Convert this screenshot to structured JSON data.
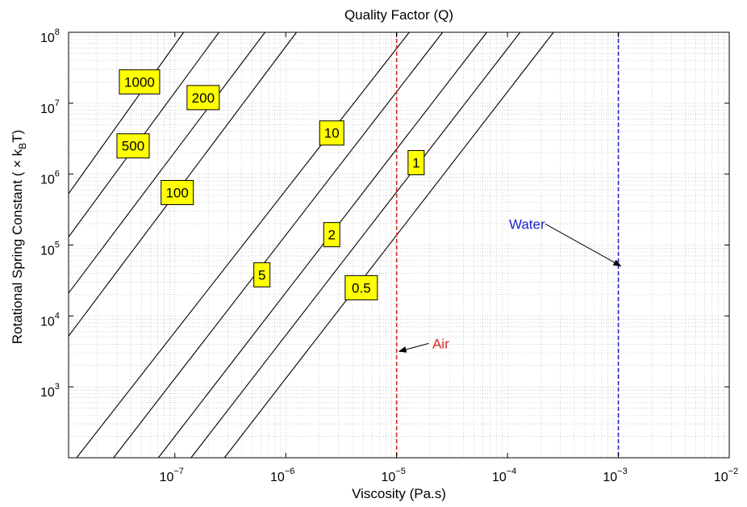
{
  "chart_data": {
    "type": "line",
    "title": "Quality Factor (Q)",
    "xlabel": "Viscosity (Pa.s)",
    "ylabel": {
      "main": "Rotational Spring Constant ( × k",
      "sub": "B",
      "end": "T)"
    },
    "x_scale": "log",
    "y_scale": "log",
    "xlim": [
      1.1e-08,
      0.01
    ],
    "ylim": [
      100,
      100000000
    ],
    "grid": true,
    "x_ticks": [
      {
        "value": 1e-07,
        "base": "10",
        "exp": "−7"
      },
      {
        "value": 1e-06,
        "base": "10",
        "exp": "−6"
      },
      {
        "value": 1e-05,
        "base": "10",
        "exp": "−5"
      },
      {
        "value": 0.0001,
        "base": "10",
        "exp": "−4"
      },
      {
        "value": 0.001,
        "base": "10",
        "exp": "−3"
      },
      {
        "value": 0.01,
        "base": "10",
        "exp": "−2"
      }
    ],
    "y_ticks": [
      {
        "value": 1000,
        "base": "10",
        "exp": "3"
      },
      {
        "value": 10000,
        "base": "10",
        "exp": "4"
      },
      {
        "value": 100000,
        "base": "10",
        "exp": "5"
      },
      {
        "value": 1000000,
        "base": "10",
        "exp": "6"
      },
      {
        "value": 10000000,
        "base": "10",
        "exp": "7"
      },
      {
        "value": 100000000,
        "base": "10",
        "exp": "8"
      }
    ],
    "series": [
      {
        "q_label": "1000",
        "points": [
          [
            1.1e-08,
            530000
          ],
          [
            1.2e-07,
            100000000
          ]
        ],
        "label_at": [
          4.8e-08,
          20000000
        ]
      },
      {
        "q_label": "500",
        "points": [
          [
            1.1e-08,
            130000
          ],
          [
            2.5e-07,
            100000000
          ]
        ],
        "label_at": [
          4.2e-08,
          2500000
        ]
      },
      {
        "q_label": "200",
        "points": [
          [
            1.1e-08,
            21000
          ],
          [
            6.5e-07,
            100000000
          ]
        ],
        "label_at": [
          1.8e-07,
          12000000
        ]
      },
      {
        "q_label": "100",
        "points": [
          [
            1.1e-08,
            5200
          ],
          [
            1.25e-06,
            100000000
          ]
        ],
        "label_at": [
          1.05e-07,
          550000
        ]
      },
      {
        "q_label": "10",
        "points": [
          [
            1.3e-08,
            100
          ],
          [
            1.3e-05,
            100000000
          ]
        ],
        "label_at": [
          2.6e-06,
          3800000
        ]
      },
      {
        "q_label": "5",
        "points": [
          [
            2.8e-08,
            100
          ],
          [
            2.6e-05,
            100000000
          ]
        ],
        "label_at": [
          6.1e-07,
          38000
        ]
      },
      {
        "q_label": "2",
        "points": [
          [
            7.1e-08,
            100
          ],
          [
            6.5e-05,
            100000000
          ]
        ],
        "label_at": [
          2.6e-06,
          140000
        ]
      },
      {
        "q_label": "1",
        "points": [
          [
            1.4e-07,
            100
          ],
          [
            0.00013,
            100000000
          ]
        ],
        "label_at": [
          1.5e-05,
          1450000
        ]
      },
      {
        "q_label": "0.5",
        "points": [
          [
            2.8e-07,
            100
          ],
          [
            0.00026,
            100000000
          ]
        ],
        "label_at": [
          4.8e-06,
          25000
        ]
      }
    ],
    "reference_lines": [
      {
        "name": "Air",
        "x": 1e-05,
        "color": "#d62a20",
        "label_at": [
          2.5e-05,
          3500
        ],
        "arrow_to": [
          1e-05,
          3000
        ]
      },
      {
        "name": "Water",
        "x": 0.001,
        "color": "#1f24d0",
        "label_at": [
          0.00015,
          170000
        ],
        "arrow_to": [
          0.001,
          48000
        ]
      }
    ],
    "label_box_color": "#ffff00"
  }
}
